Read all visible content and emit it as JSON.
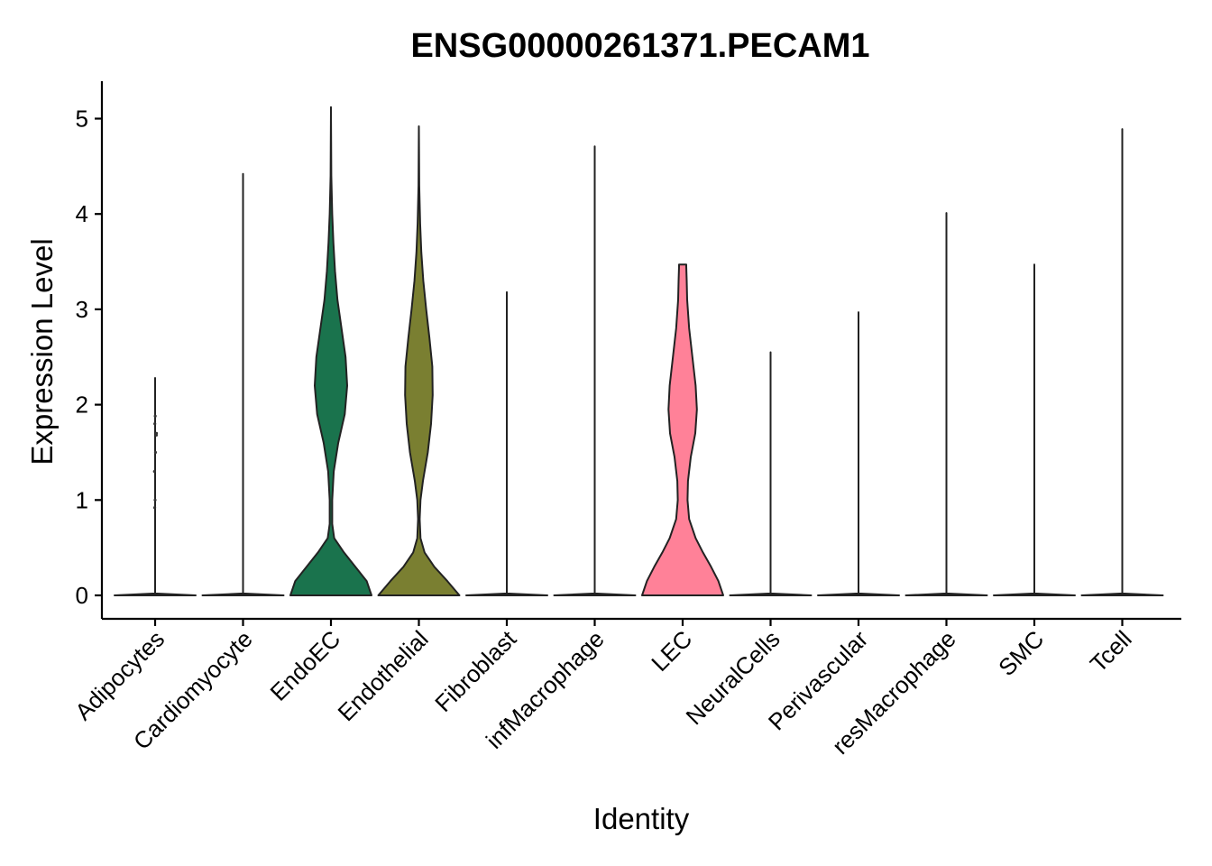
{
  "chart_data": {
    "type": "violin",
    "title": "ENSG00000261371.PECAM1",
    "xlabel": "Identity",
    "ylabel": "Expression Level",
    "ylim": [
      -0.25,
      5.4
    ],
    "yticks": [
      0,
      1,
      2,
      3,
      4,
      5
    ],
    "grid": false,
    "legend": "none",
    "categories": [
      "Adipocytes",
      "Cardiomyocyte",
      "EndoEC",
      "Endothelial",
      "Fibroblast",
      "infMacrophage",
      "LEC",
      "NeuralCells",
      "Perivascular",
      "resMacrophage",
      "SMC",
      "Tcell"
    ],
    "series": [
      {
        "category": "Adipocytes",
        "max": 2.28,
        "color": "#F8766D",
        "profile": [
          [
            0,
            1.0
          ],
          [
            0.02,
            0.0
          ],
          [
            2.28,
            0.0
          ]
        ],
        "points": [
          0.92,
          1.0,
          1.3,
          1.5,
          1.68,
          1.7,
          1.8,
          1.88
        ]
      },
      {
        "category": "Cardiomyocyte",
        "max": 4.42,
        "color": "#DB8E00",
        "profile": [
          [
            0,
            1.0
          ],
          [
            0.02,
            0.0
          ],
          [
            4.42,
            0.0
          ]
        ],
        "points": []
      },
      {
        "category": "EndoEC",
        "max": 5.12,
        "color": "#1A734D",
        "profile": [
          [
            0,
            1.0
          ],
          [
            0.15,
            0.88
          ],
          [
            0.3,
            0.6
          ],
          [
            0.45,
            0.32
          ],
          [
            0.6,
            0.08
          ],
          [
            0.75,
            0.03
          ],
          [
            1.0,
            0.03
          ],
          [
            1.3,
            0.07
          ],
          [
            1.6,
            0.18
          ],
          [
            1.9,
            0.34
          ],
          [
            2.2,
            0.4
          ],
          [
            2.5,
            0.36
          ],
          [
            2.8,
            0.26
          ],
          [
            3.1,
            0.16
          ],
          [
            3.4,
            0.1
          ],
          [
            3.7,
            0.06
          ],
          [
            4.0,
            0.03
          ],
          [
            4.4,
            0.01
          ],
          [
            5.12,
            0.0
          ]
        ],
        "points": []
      },
      {
        "category": "Endothelial",
        "max": 4.92,
        "color": "#7A7F31",
        "profile": [
          [
            0,
            1.0
          ],
          [
            0.15,
            0.7
          ],
          [
            0.3,
            0.38
          ],
          [
            0.45,
            0.14
          ],
          [
            0.6,
            0.04
          ],
          [
            0.8,
            0.02
          ],
          [
            1.0,
            0.04
          ],
          [
            1.2,
            0.1
          ],
          [
            1.5,
            0.22
          ],
          [
            1.8,
            0.3
          ],
          [
            2.1,
            0.34
          ],
          [
            2.4,
            0.33
          ],
          [
            2.7,
            0.26
          ],
          [
            3.0,
            0.18
          ],
          [
            3.3,
            0.11
          ],
          [
            3.6,
            0.06
          ],
          [
            3.9,
            0.03
          ],
          [
            4.3,
            0.01
          ],
          [
            4.92,
            0.0
          ]
        ],
        "points": []
      },
      {
        "category": "Fibroblast",
        "max": 3.18,
        "color": "#00BA38",
        "profile": [
          [
            0,
            1.0
          ],
          [
            0.02,
            0.0
          ],
          [
            3.18,
            0.0
          ]
        ],
        "points": []
      },
      {
        "category": "infMacrophage",
        "max": 4.71,
        "color": "#00C08B",
        "profile": [
          [
            0,
            1.0
          ],
          [
            0.02,
            0.0
          ],
          [
            4.71,
            0.0
          ]
        ],
        "points": []
      },
      {
        "category": "LEC",
        "max": 3.47,
        "color": "#FF8198",
        "profile": [
          [
            0,
            1.0
          ],
          [
            0.15,
            0.88
          ],
          [
            0.3,
            0.7
          ],
          [
            0.45,
            0.5
          ],
          [
            0.6,
            0.32
          ],
          [
            0.8,
            0.16
          ],
          [
            1.0,
            0.12
          ],
          [
            1.2,
            0.13
          ],
          [
            1.45,
            0.2
          ],
          [
            1.7,
            0.31
          ],
          [
            1.95,
            0.35
          ],
          [
            2.2,
            0.32
          ],
          [
            2.5,
            0.24
          ],
          [
            2.8,
            0.16
          ],
          [
            3.1,
            0.11
          ],
          [
            3.3,
            0.1
          ],
          [
            3.45,
            0.09
          ],
          [
            3.47,
            0.09
          ]
        ],
        "points": []
      },
      {
        "category": "NeuralCells",
        "max": 2.55,
        "color": "#00B4F0",
        "profile": [
          [
            0,
            1.0
          ],
          [
            0.02,
            0.0
          ],
          [
            2.55,
            0.0
          ]
        ],
        "points": []
      },
      {
        "category": "Perivascular",
        "max": 2.97,
        "color": "#619CFF",
        "profile": [
          [
            0,
            1.0
          ],
          [
            0.02,
            0.0
          ],
          [
            2.97,
            0.0
          ]
        ],
        "points": []
      },
      {
        "category": "resMacrophage",
        "max": 4.01,
        "color": "#C77CFF",
        "profile": [
          [
            0,
            1.0
          ],
          [
            0.02,
            0.0
          ],
          [
            4.01,
            0.0
          ]
        ],
        "points": []
      },
      {
        "category": "SMC",
        "max": 3.47,
        "color": "#F564E3",
        "profile": [
          [
            0,
            1.0
          ],
          [
            0.02,
            0.0
          ],
          [
            3.47,
            0.0
          ]
        ],
        "points": []
      },
      {
        "category": "Tcell",
        "max": 4.89,
        "color": "#FF64B0",
        "profile": [
          [
            0,
            1.0
          ],
          [
            0.02,
            0.0
          ],
          [
            4.89,
            0.0
          ]
        ],
        "points": []
      }
    ]
  }
}
